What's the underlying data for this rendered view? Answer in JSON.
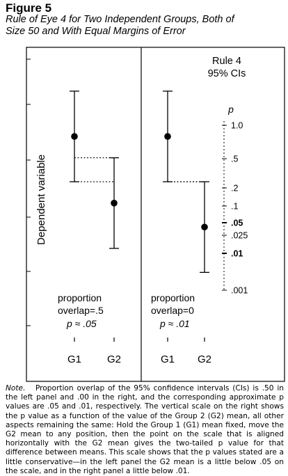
{
  "figure": {
    "label": "Figure 5",
    "title_line1": "Rule of Eye 4 for Two Independent Groups, Both of",
    "title_line2": "Size 50 and With Equal Margins of Error"
  },
  "chart_data": {
    "type": "interval",
    "ylabel": "Dependent variable",
    "left_panel": {
      "categories": [
        "G1",
        "G2"
      ],
      "means": [
        71,
        46
      ],
      "ci_lower": [
        54,
        29
      ],
      "ci_upper": [
        88,
        63
      ],
      "annotation": [
        "proportion",
        "overlap=.5",
        "p ≈ .05"
      ]
    },
    "right_panel": {
      "categories": [
        "G1",
        "G2"
      ],
      "means": [
        71,
        37
      ],
      "ci_lower": [
        54,
        20
      ],
      "ci_upper": [
        88,
        54
      ],
      "annotation": [
        "proportion",
        "overlap=0",
        "p ≈ .01"
      ],
      "heading": [
        "Rule 4",
        "95% CIs"
      ],
      "p_scale": {
        "label": "p",
        "ticks": [
          {
            "label": "1.0",
            "bold": false
          },
          {
            "label": ".5",
            "bold": false
          },
          {
            "label": ".2",
            "bold": false
          },
          {
            "label": ".1",
            "bold": false
          },
          {
            "label": ".05",
            "bold": true
          },
          {
            "label": ".025",
            "bold": false
          },
          {
            "label": ".01",
            "bold": true
          },
          {
            "label": ".001",
            "bold": false
          }
        ]
      }
    }
  },
  "note": {
    "lead": "Note.",
    "text": "Proportion overlap of the 95% confidence intervals (CIs) is .50 in the left panel and .00 in the right, and the corresponding approximate p values are .05 and .01, respectively. The vertical scale on the right shows the p value as a function of the value of the Group 2 (G2) mean, all other aspects remaining the same: Hold the Group 1 (G1) mean fixed, move the G2 mean to any position, then the point on the scale that is aligned horizontally with the G2 mean gives the two-tailed p value for that difference between means. This scale shows that the p values stated are a little conservative—in the left panel the G2 mean is a little below .05 on the scale, and in the right panel a little below .01."
  }
}
